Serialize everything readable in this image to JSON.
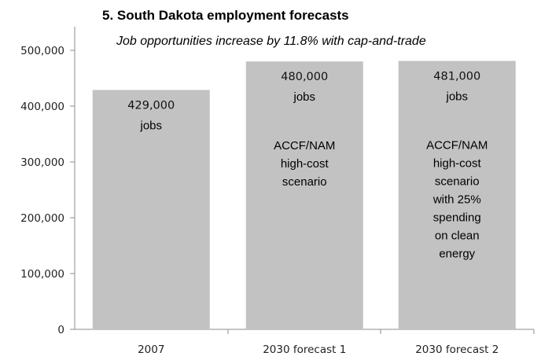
{
  "chart_data": {
    "type": "bar",
    "title": "5. South Dakota employment forecasts",
    "subtitle": "Job opportunities increase by 11.8% with cap-and-trade",
    "categories": [
      "2007",
      "2030 forecast 1",
      "2030 forecast 2"
    ],
    "values": [
      429000,
      480000,
      481000
    ],
    "value_labels": [
      "429,000",
      "480,000",
      "481,000"
    ],
    "unit_label": "jobs",
    "annotations": [
      [],
      [
        "ACCF/NAM",
        "high-cost",
        "scenario"
      ],
      [
        "ACCF/NAM",
        "high-cost",
        "scenario",
        "with 25%",
        "spending",
        "on clean",
        "energy"
      ]
    ],
    "y_ticks": [
      "0",
      "100,000",
      "200,000",
      "300,000",
      "400,000",
      "500,000"
    ],
    "ylim": [
      0,
      500000
    ],
    "xlabel": "",
    "ylabel": "",
    "grid": false,
    "colors": {
      "bar": "#c2c2c2",
      "axis": "#8c8c8c"
    }
  }
}
